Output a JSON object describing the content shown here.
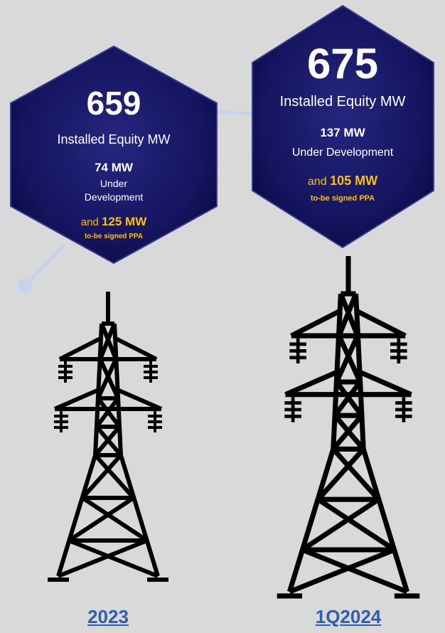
{
  "panels": [
    {
      "installed": "659",
      "installed_label": "Installed Equity MW",
      "development": "74 MW",
      "development_label": "Under Development",
      "ppa_prefix": "and",
      "ppa": "125 MW",
      "ppa_label": "to-be signed PPA",
      "period": "2023"
    },
    {
      "installed": "675",
      "installed_label": "Installed Equity MW",
      "development": "137 MW",
      "development_label": "Under Development",
      "ppa_prefix": "and",
      "ppa": "105 MW",
      "ppa_label": "to-be signed PPA",
      "period": "1Q2024"
    }
  ]
}
